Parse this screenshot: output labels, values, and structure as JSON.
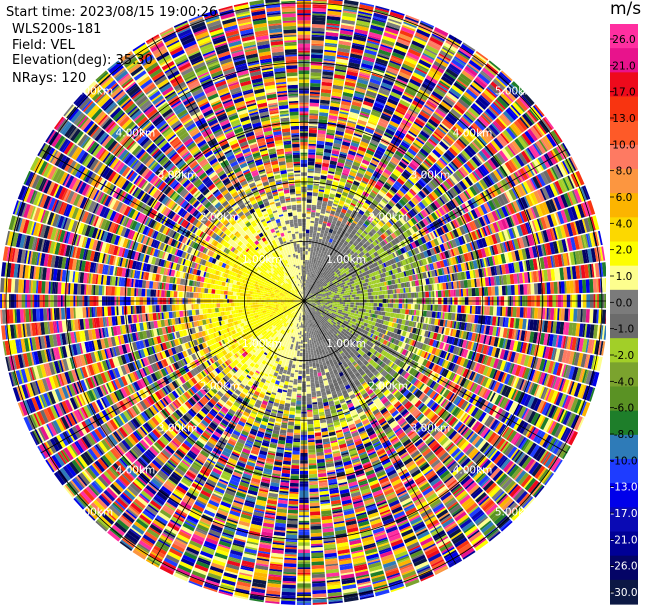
{
  "header": {
    "start_time": "Start time: 2023/08/15 19:00:26",
    "instrument": "WLS200s-181",
    "field": "Field: VEL",
    "elevation": "Elevation(deg): 35.30",
    "nrays": "NRays: 120"
  },
  "colorbar": {
    "unit": "m/s",
    "ticks": [
      "26.0",
      "21.0",
      "17.0",
      "13.0",
      "10.0",
      "8.0",
      "6.0",
      "4.0",
      "2.0",
      "1.0",
      "0.0",
      "-1.0",
      "-2.0",
      "-4.0",
      "-6.0",
      "-8.0",
      "-10.0",
      "-13.0",
      "-17.0",
      "-21.0",
      "-26.0",
      "-30.0"
    ],
    "colors": [
      "#ff2fa0",
      "#e8138c",
      "#ee0a1c",
      "#f83410",
      "#fe5a28",
      "#fe7a62",
      "#fc9640",
      "#fcb400",
      "#fcd800",
      "#fdfe00",
      "#fdfe8e",
      "#7b7b7b",
      "#6b6b6b",
      "#a2cf28",
      "#7ba32e",
      "#5a9224",
      "#1e7e2a",
      "#2e7bb8",
      "#1e3cff",
      "#0000ea",
      "#0a0ab4",
      "#000096",
      "#040466",
      "#0c1844"
    ]
  },
  "chart_data": {
    "type": "ppi",
    "field": "VEL",
    "nrays": 120,
    "range_rings_km": [
      1.0,
      2.0,
      3.0,
      4.0,
      5.0
    ],
    "ring_labels": [
      "1.00km",
      "2.00km",
      "3.00km",
      "4.00km",
      "5.00km"
    ],
    "vmin": -30.0,
    "vmax": 26.0
  }
}
